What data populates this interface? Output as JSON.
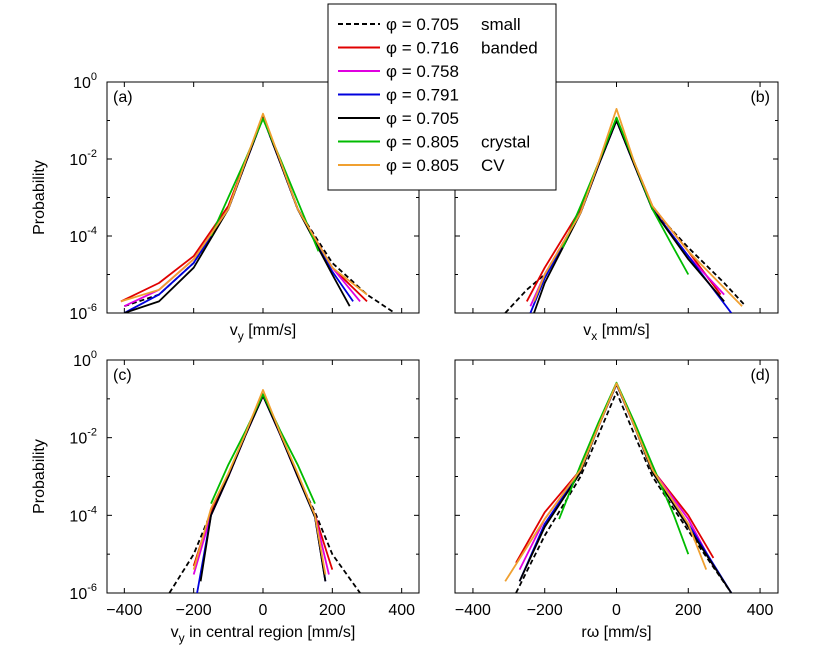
{
  "chart_data": [
    {
      "type": "line",
      "panel_label": "(a)",
      "title": "",
      "xlabel": "v",
      "xlabel_sub": "y",
      "xlabel_rest": "  [mm/s]",
      "ylabel": "Probability",
      "xlim": [
        -450,
        450
      ],
      "ylim": [
        1e-06,
        1
      ],
      "yscale": "log",
      "xticks": [
        -400,
        -200,
        0,
        200,
        400
      ],
      "xtick_labels": [
        "",
        "",
        "",
        "",
        ""
      ],
      "yticks": [
        1,
        0.01,
        0.0001,
        1e-06
      ],
      "ytick_labels": [
        {
          "base": "10",
          "exp": "0"
        },
        {
          "base": "10",
          "exp": "-2"
        },
        {
          "base": "10",
          "exp": "-4"
        },
        {
          "base": "10",
          "exp": "-6"
        }
      ],
      "series": [
        {
          "name": "φ = 0.705",
          "note": "small",
          "color": "#000000",
          "dash": "5,3",
          "x": [
            -400,
            -300,
            -200,
            -100,
            -50,
            0,
            50,
            100,
            200,
            300,
            380
          ],
          "y": [
            1.5e-06,
            3e-06,
            2e-05,
            0.0005,
            0.008,
            0.12,
            0.008,
            0.0005,
            2e-05,
            3e-06,
            1e-06
          ]
        },
        {
          "name": "φ = 0.716",
          "note": "banded",
          "color": "#e00000",
          "x": [
            -410,
            -300,
            -200,
            -100,
            -50,
            0,
            50,
            100,
            200,
            300
          ],
          "y": [
            2e-06,
            6e-06,
            3e-05,
            0.0006,
            0.009,
            0.13,
            0.009,
            0.0005,
            1.5e-05,
            2e-06
          ]
        },
        {
          "name": "φ = 0.758",
          "note": "",
          "color": "#e000e0",
          "x": [
            -400,
            -300,
            -200,
            -100,
            -50,
            0,
            50,
            100,
            200,
            280
          ],
          "y": [
            1.5e-06,
            4e-06,
            2.5e-05,
            0.0005,
            0.008,
            0.12,
            0.008,
            0.0005,
            1.5e-05,
            2e-06
          ]
        },
        {
          "name": "φ = 0.791",
          "note": "",
          "color": "#0000dd",
          "x": [
            -400,
            -300,
            -200,
            -100,
            -50,
            0,
            50,
            100,
            200,
            260
          ],
          "y": [
            1e-06,
            3e-06,
            2e-05,
            0.0005,
            0.008,
            0.12,
            0.008,
            0.0005,
            1.2e-05,
            2e-06
          ]
        },
        {
          "name": "φ = 0.705",
          "note": "",
          "color": "#000000",
          "x": [
            -400,
            -300,
            -200,
            -100,
            -50,
            0,
            50,
            100,
            200,
            250
          ],
          "y": [
            1e-06,
            2e-06,
            1.5e-05,
            0.0005,
            0.008,
            0.12,
            0.008,
            0.0005,
            1e-05,
            1.5e-06
          ]
        },
        {
          "name": "φ = 0.805",
          "note": "crystal",
          "color": "#00bb00",
          "x": [
            -150,
            -100,
            -50,
            0,
            50,
            100,
            160
          ],
          "y": [
            0.0001,
            0.001,
            0.01,
            0.11,
            0.01,
            0.0008,
            4e-05
          ]
        },
        {
          "name": "φ = 0.805",
          "note": "CV",
          "color": "#f0a030",
          "x": [
            -410,
            -300,
            -200,
            -100,
            -50,
            0,
            50,
            100,
            200,
            300
          ],
          "y": [
            2e-06,
            4e-06,
            2.5e-05,
            0.0005,
            0.009,
            0.15,
            0.009,
            0.0005,
            1.5e-05,
            3e-06
          ]
        }
      ]
    },
    {
      "type": "line",
      "panel_label": "(b)",
      "title": "",
      "xlabel": "v",
      "xlabel_sub": "x",
      "xlabel_rest": "  [mm/s]",
      "ylabel": "",
      "xlim": [
        -450,
        450
      ],
      "ylim": [
        1e-06,
        1
      ],
      "yscale": "log",
      "xticks": [
        -400,
        -200,
        0,
        200,
        400
      ],
      "xtick_labels": [
        "",
        "",
        "",
        "",
        ""
      ],
      "yticks": [
        1,
        0.01,
        0.0001,
        1e-06
      ],
      "ytick_labels": [],
      "series": [
        {
          "name": "φ = 0.705",
          "note": "small",
          "color": "#000000",
          "dash": "5,3",
          "x": [
            -310,
            -250,
            -200,
            -100,
            -50,
            0,
            50,
            100,
            200,
            300,
            360
          ],
          "y": [
            1e-06,
            4e-06,
            1e-05,
            0.0004,
            0.007,
            0.1,
            0.007,
            0.0005,
            5e-05,
            6e-06,
            1.5e-06
          ]
        },
        {
          "name": "φ = 0.716",
          "note": "banded",
          "color": "#e00000",
          "x": [
            -250,
            -200,
            -100,
            -50,
            0,
            50,
            100,
            200,
            290
          ],
          "y": [
            2e-06,
            1.5e-05,
            0.0005,
            0.008,
            0.11,
            0.008,
            0.0006,
            4e-05,
            3e-06
          ]
        },
        {
          "name": "φ = 0.758",
          "note": "",
          "color": "#e000e0",
          "x": [
            -240,
            -200,
            -100,
            -50,
            0,
            50,
            100,
            200,
            300
          ],
          "y": [
            1.5e-06,
            1e-05,
            0.0004,
            0.007,
            0.1,
            0.007,
            0.0005,
            3e-05,
            3e-06
          ]
        },
        {
          "name": "φ = 0.791",
          "note": "",
          "color": "#0000dd",
          "x": [
            -240,
            -200,
            -100,
            -50,
            0,
            50,
            100,
            200,
            320
          ],
          "y": [
            1e-06,
            8e-06,
            0.0004,
            0.007,
            0.1,
            0.007,
            0.0005,
            3e-05,
            1e-06
          ]
        },
        {
          "name": "φ = 0.705",
          "note": "",
          "color": "#000000",
          "x": [
            -230,
            -200,
            -100,
            -50,
            0,
            50,
            100,
            200,
            300
          ],
          "y": [
            1e-06,
            6e-06,
            0.0004,
            0.007,
            0.1,
            0.007,
            0.0005,
            2.5e-05,
            2e-06
          ]
        },
        {
          "name": "φ = 0.805",
          "note": "crystal",
          "color": "#00bb00",
          "x": [
            -150,
            -100,
            -50,
            0,
            50,
            100,
            150,
            200
          ],
          "y": [
            5e-05,
            0.0006,
            0.008,
            0.12,
            0.008,
            0.0005,
            7e-05,
            1e-05
          ]
        },
        {
          "name": "φ = 0.805",
          "note": "CV",
          "color": "#f0a030",
          "x": [
            -230,
            -200,
            -100,
            -50,
            0,
            50,
            100,
            200,
            350
          ],
          "y": [
            2e-06,
            1e-05,
            0.0004,
            0.008,
            0.2,
            0.008,
            0.0006,
            4e-05,
            1.5e-06
          ]
        }
      ]
    },
    {
      "type": "line",
      "panel_label": "(c)",
      "title": "",
      "xlabel": "v",
      "xlabel_sub": "y",
      "xlabel_rest": " in central region  [mm/s]",
      "ylabel": "Probability",
      "xlim": [
        -450,
        450
      ],
      "ylim": [
        1e-06,
        1
      ],
      "yscale": "log",
      "xticks": [
        -400,
        -200,
        0,
        200,
        400
      ],
      "xtick_labels": [
        "−400",
        "−200",
        "0",
        "200",
        "400"
      ],
      "yticks": [
        1,
        0.01,
        0.0001,
        1e-06
      ],
      "ytick_labels": [
        {
          "base": "10",
          "exp": "0"
        },
        {
          "base": "10",
          "exp": "-2"
        },
        {
          "base": "10",
          "exp": "-4"
        },
        {
          "base": "10",
          "exp": "-6"
        }
      ],
      "series": [
        {
          "name": "φ = 0.705",
          "note": "small",
          "color": "#000000",
          "dash": "5,3",
          "x": [
            -270,
            -200,
            -150,
            -100,
            -50,
            0,
            50,
            100,
            150,
            200,
            280
          ],
          "y": [
            1e-06,
            1e-05,
            0.00012,
            0.001,
            0.012,
            0.14,
            0.012,
            0.001,
            0.00012,
            1e-05,
            1e-06
          ]
        },
        {
          "name": "φ = 0.716",
          "note": "banded",
          "color": "#e00000",
          "x": [
            -200,
            -150,
            -100,
            -50,
            0,
            50,
            100,
            150,
            200
          ],
          "y": [
            5e-06,
            0.00012,
            0.001,
            0.012,
            0.13,
            0.012,
            0.001,
            0.0001,
            4e-06
          ]
        },
        {
          "name": "φ = 0.758",
          "note": "",
          "color": "#e000e0",
          "x": [
            -200,
            -150,
            -100,
            -50,
            0,
            50,
            100,
            150,
            190
          ],
          "y": [
            3e-06,
            0.0001,
            0.001,
            0.012,
            0.12,
            0.012,
            0.001,
            0.0001,
            3e-06
          ]
        },
        {
          "name": "φ = 0.791",
          "note": "",
          "color": "#0000dd",
          "x": [
            -190,
            -150,
            -100,
            -50,
            0,
            50,
            100,
            150,
            180
          ],
          "y": [
            1e-06,
            0.0001,
            0.001,
            0.012,
            0.12,
            0.012,
            0.001,
            9e-05,
            2e-06
          ]
        },
        {
          "name": "φ = 0.705",
          "note": "",
          "color": "#000000",
          "x": [
            -180,
            -150,
            -100,
            -50,
            0,
            50,
            100,
            150,
            180
          ],
          "y": [
            2e-06,
            0.0001,
            0.001,
            0.012,
            0.12,
            0.012,
            0.001,
            9e-05,
            2e-06
          ]
        },
        {
          "name": "φ = 0.805",
          "note": "crystal",
          "color": "#00bb00",
          "x": [
            -150,
            -100,
            -50,
            0,
            50,
            100,
            150
          ],
          "y": [
            0.0002,
            0.002,
            0.015,
            0.13,
            0.015,
            0.002,
            0.0002
          ]
        },
        {
          "name": "φ = 0.805",
          "note": "CV",
          "color": "#f0a030",
          "x": [
            -200,
            -150,
            -100,
            -50,
            0,
            50,
            100,
            150,
            180
          ],
          "y": [
            4e-06,
            0.00015,
            0.0012,
            0.013,
            0.17,
            0.013,
            0.0012,
            0.0001,
            3e-06
          ]
        }
      ]
    },
    {
      "type": "line",
      "panel_label": "(d)",
      "title": "",
      "xlabel": "rω",
      "xlabel_sub": "",
      "xlabel_rest": "  [mm/s]",
      "ylabel": "",
      "xlim": [
        -450,
        450
      ],
      "ylim": [
        1e-06,
        1
      ],
      "yscale": "log",
      "xticks": [
        -400,
        -200,
        0,
        200,
        400
      ],
      "xtick_labels": [
        "−400",
        "−200",
        "0",
        "200",
        "400"
      ],
      "yticks": [
        1,
        0.01,
        0.0001,
        1e-06
      ],
      "ytick_labels": [],
      "series": [
        {
          "name": "φ = 0.705",
          "note": "small",
          "color": "#000000",
          "dash": "5,3",
          "x": [
            -280,
            -200,
            -100,
            -50,
            0,
            50,
            100,
            200,
            320
          ],
          "y": [
            1e-06,
            3e-05,
            0.001,
            0.012,
            0.15,
            0.012,
            0.001,
            4e-05,
            1e-06
          ]
        },
        {
          "name": "φ = 0.716",
          "note": "banded",
          "color": "#e00000",
          "x": [
            -280,
            -200,
            -100,
            -50,
            0,
            50,
            100,
            200,
            270
          ],
          "y": [
            6e-06,
            0.00012,
            0.0015,
            0.02,
            0.25,
            0.02,
            0.0015,
            0.0001,
            8e-06
          ]
        },
        {
          "name": "φ = 0.758",
          "note": "",
          "color": "#e000e0",
          "x": [
            -270,
            -200,
            -100,
            -50,
            0,
            50,
            100,
            200,
            270
          ],
          "y": [
            4e-06,
            8e-05,
            0.0015,
            0.02,
            0.24,
            0.02,
            0.0015,
            8e-05,
            5e-06
          ]
        },
        {
          "name": "φ = 0.791",
          "note": "",
          "color": "#0000dd",
          "x": [
            -270,
            -200,
            -100,
            -50,
            0,
            50,
            100,
            200,
            320
          ],
          "y": [
            2e-06,
            6e-05,
            0.0014,
            0.02,
            0.24,
            0.02,
            0.0014,
            6e-05,
            1e-06
          ]
        },
        {
          "name": "φ = 0.705",
          "note": "",
          "color": "#000000",
          "x": [
            -270,
            -200,
            -100,
            -50,
            0,
            50,
            100,
            200,
            320
          ],
          "y": [
            2e-06,
            5e-05,
            0.0013,
            0.02,
            0.24,
            0.02,
            0.0013,
            5e-05,
            1e-06
          ]
        },
        {
          "name": "φ = 0.805",
          "note": "crystal",
          "color": "#00bb00",
          "x": [
            -160,
            -100,
            -50,
            0,
            50,
            100,
            160,
            200
          ],
          "y": [
            8e-05,
            0.002,
            0.025,
            0.26,
            0.025,
            0.002,
            0.0001,
            1e-05
          ]
        },
        {
          "name": "φ = 0.805",
          "note": "CV",
          "color": "#f0a030",
          "x": [
            -310,
            -200,
            -100,
            -50,
            0,
            50,
            100,
            200,
            250
          ],
          "y": [
            2e-06,
            8e-05,
            0.0015,
            0.02,
            0.25,
            0.02,
            0.0015,
            6e-05,
            4e-06
          ]
        }
      ]
    }
  ],
  "legend": {
    "placement": "top-center",
    "items": [
      {
        "label": "φ = 0.705",
        "note": "small",
        "color": "#000000",
        "dash": "5,3"
      },
      {
        "label": "φ = 0.716",
        "note": "banded",
        "color": "#e00000",
        "dash": ""
      },
      {
        "label": "φ = 0.758",
        "note": "",
        "color": "#e000e0",
        "dash": ""
      },
      {
        "label": "φ = 0.791",
        "note": "",
        "color": "#0000dd",
        "dash": ""
      },
      {
        "label": "φ = 0.705",
        "note": "",
        "color": "#000000",
        "dash": ""
      },
      {
        "label": "φ = 0.805",
        "note": "crystal",
        "color": "#00bb00",
        "dash": ""
      },
      {
        "label": "φ = 0.805",
        "note": "CV",
        "color": "#f0a030",
        "dash": ""
      }
    ]
  }
}
